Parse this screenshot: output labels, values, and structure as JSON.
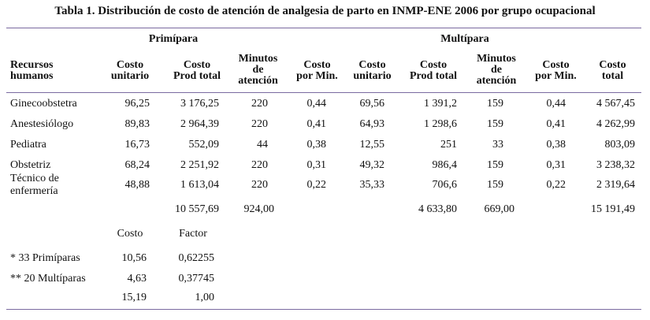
{
  "title": "Tabla 1. Distribución de costo de atención de analgesia de parto en INMP-ENE 2006 por grupo ocupacional",
  "groups": {
    "primipara": "Primípara",
    "multipara": "Multípara"
  },
  "headers": {
    "recursos": "Recursos\nhumanos",
    "p_costo_unitario": "Costo\nunitario",
    "p_costo_prod": "Costo\nProd total",
    "p_minutos": "Minutos\nde\natención",
    "p_costo_min": "Costo\npor Min.",
    "m_costo_unitario": "Costo\nunitario",
    "m_costo_prod": "Costo\nProd total",
    "m_minutos": "Minutos\nde\natención",
    "m_costo_min": "Costo\npor Min.",
    "costo_total": "Costo\ntotal"
  },
  "rows": [
    {
      "name": "Ginecoobstetra",
      "p_cu": "96,25",
      "p_cp": "3 176,25",
      "p_min": "220",
      "p_cm": "0,44",
      "m_cu": "69,56",
      "m_cp": "1 391,2",
      "m_min": "159",
      "m_cm": "0,44",
      "total": "4 567,45"
    },
    {
      "name": "Anestesiólogo",
      "p_cu": "89,83",
      "p_cp": "2 964,39",
      "p_min": "220",
      "p_cm": "0,41",
      "m_cu": "64,93",
      "m_cp": "1 298,6",
      "m_min": "159",
      "m_cm": "0,41",
      "total": "4 262,99"
    },
    {
      "name": "Pediatra",
      "p_cu": "16,73",
      "p_cp": "552,09",
      "p_min": "44",
      "p_cm": "0,38",
      "m_cu": "12,55",
      "m_cp": "251",
      "m_min": "33",
      "m_cm": "0,38",
      "total": "803,09"
    },
    {
      "name": "Obstetriz",
      "p_cu": "68,24",
      "p_cp": "2 251,92",
      "p_min": "220",
      "p_cm": "0,31",
      "m_cu": "49,32",
      "m_cp": "986,4",
      "m_min": "159",
      "m_cm": "0,31",
      "total": "3 238,32"
    },
    {
      "name": "Técnico de\nenfermería",
      "p_cu": "48,88",
      "p_cp": "1 613,04",
      "p_min": "220",
      "p_cm": "0,22",
      "m_cu": "35,33",
      "m_cp": "706,6",
      "m_min": "159",
      "m_cm": "0,22",
      "total": "2 319,64"
    }
  ],
  "totals": {
    "p_cp": "10 557,69",
    "p_min": "924,00",
    "m_cp": "4 633,80",
    "m_min": "669,00",
    "total": "15 191,49"
  },
  "factor_table": {
    "col_costo": "Costo",
    "col_factor": "Factor",
    "rows": [
      {
        "label": "* 33  Primíparas",
        "costo": "10,56",
        "factor": "0,62255"
      },
      {
        "label": "** 20 Multíparas",
        "costo": "4,63",
        "factor": "0,37745"
      },
      {
        "label": "",
        "costo": "15,19",
        "factor": "1,00"
      }
    ]
  }
}
